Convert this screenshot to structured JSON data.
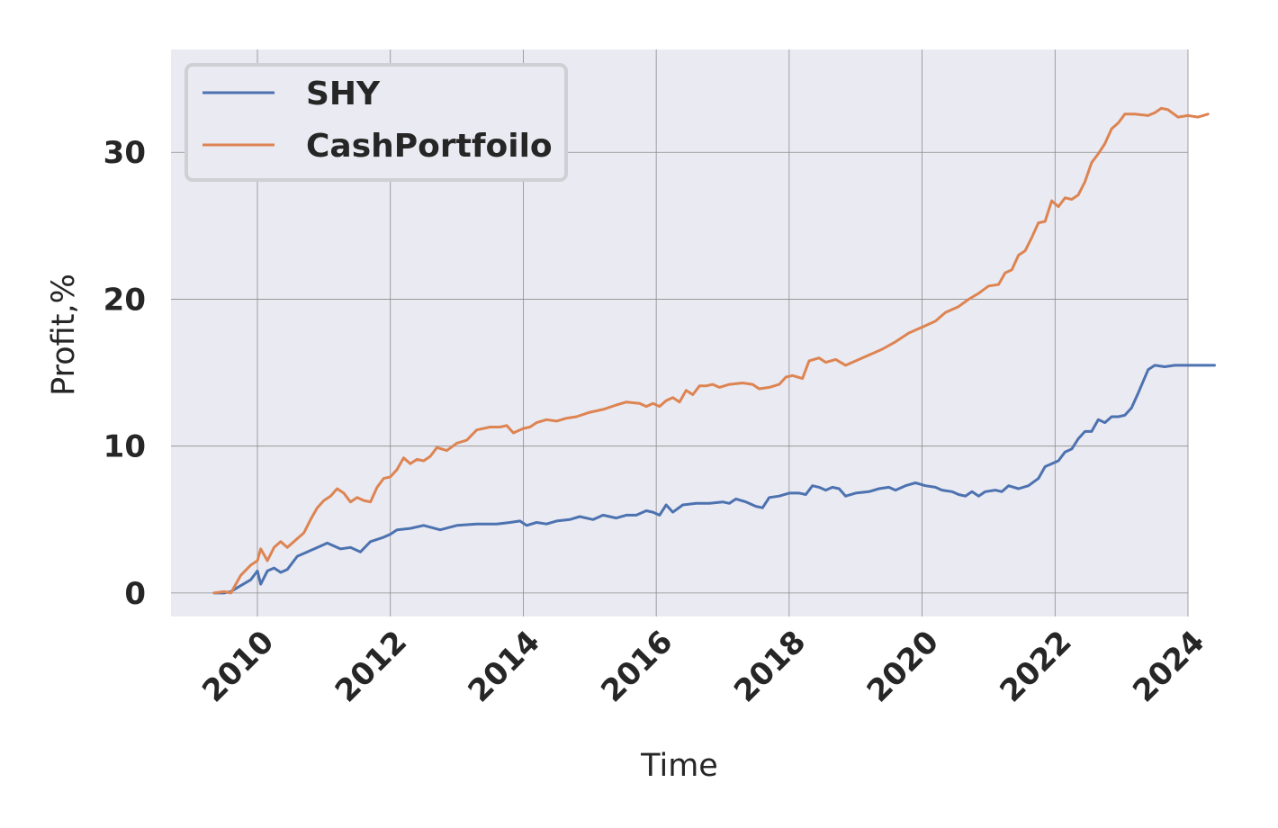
{
  "chart_data": {
    "type": "line",
    "title": "",
    "xlabel": "Time",
    "ylabel": "Profit,%",
    "xlim": [
      2008.7,
      2024.0
    ],
    "ylim": [
      -1.6,
      37.0
    ],
    "x_ticks": [
      2010,
      2012,
      2014,
      2016,
      2018,
      2020,
      2022,
      2024
    ],
    "x_tick_labels": [
      "2010",
      "2012",
      "2014",
      "2016",
      "2018",
      "2020",
      "2022",
      "2024"
    ],
    "y_ticks": [
      0,
      10,
      20,
      30
    ],
    "y_tick_labels": [
      "0",
      "10",
      "20",
      "30"
    ],
    "grid": true,
    "legend_position": "top-left",
    "background": "#eaeaf2",
    "series": [
      {
        "name": "SHY",
        "color": "#4c72b0",
        "points": [
          [
            2009.35,
            0.0
          ],
          [
            2009.5,
            0.0
          ],
          [
            2009.6,
            0.1
          ],
          [
            2009.75,
            0.5
          ],
          [
            2009.9,
            0.9
          ],
          [
            2010.0,
            1.5
          ],
          [
            2010.05,
            0.6
          ],
          [
            2010.15,
            1.5
          ],
          [
            2010.25,
            1.7
          ],
          [
            2010.35,
            1.4
          ],
          [
            2010.45,
            1.6
          ],
          [
            2010.6,
            2.5
          ],
          [
            2010.8,
            2.9
          ],
          [
            2010.95,
            3.2
          ],
          [
            2011.05,
            3.4
          ],
          [
            2011.25,
            3.0
          ],
          [
            2011.4,
            3.1
          ],
          [
            2011.55,
            2.8
          ],
          [
            2011.7,
            3.5
          ],
          [
            2011.9,
            3.8
          ],
          [
            2012.0,
            4.0
          ],
          [
            2012.1,
            4.3
          ],
          [
            2012.3,
            4.4
          ],
          [
            2012.5,
            4.6
          ],
          [
            2012.75,
            4.3
          ],
          [
            2013.0,
            4.6
          ],
          [
            2013.3,
            4.7
          ],
          [
            2013.6,
            4.7
          ],
          [
            2013.8,
            4.8
          ],
          [
            2013.95,
            4.9
          ],
          [
            2014.05,
            4.6
          ],
          [
            2014.2,
            4.8
          ],
          [
            2014.35,
            4.7
          ],
          [
            2014.5,
            4.9
          ],
          [
            2014.7,
            5.0
          ],
          [
            2014.85,
            5.2
          ],
          [
            2015.05,
            5.0
          ],
          [
            2015.2,
            5.3
          ],
          [
            2015.4,
            5.1
          ],
          [
            2015.55,
            5.3
          ],
          [
            2015.7,
            5.3
          ],
          [
            2015.85,
            5.6
          ],
          [
            2015.95,
            5.5
          ],
          [
            2016.05,
            5.3
          ],
          [
            2016.15,
            6.0
          ],
          [
            2016.25,
            5.5
          ],
          [
            2016.4,
            6.0
          ],
          [
            2016.6,
            6.1
          ],
          [
            2016.8,
            6.1
          ],
          [
            2017.0,
            6.2
          ],
          [
            2017.1,
            6.1
          ],
          [
            2017.2,
            6.4
          ],
          [
            2017.35,
            6.2
          ],
          [
            2017.5,
            5.9
          ],
          [
            2017.6,
            5.8
          ],
          [
            2017.7,
            6.5
          ],
          [
            2017.85,
            6.6
          ],
          [
            2018.0,
            6.8
          ],
          [
            2018.15,
            6.8
          ],
          [
            2018.25,
            6.7
          ],
          [
            2018.35,
            7.3
          ],
          [
            2018.45,
            7.2
          ],
          [
            2018.55,
            7.0
          ],
          [
            2018.65,
            7.2
          ],
          [
            2018.75,
            7.1
          ],
          [
            2018.85,
            6.6
          ],
          [
            2019.0,
            6.8
          ],
          [
            2019.2,
            6.9
          ],
          [
            2019.35,
            7.1
          ],
          [
            2019.5,
            7.2
          ],
          [
            2019.6,
            7.0
          ],
          [
            2019.75,
            7.3
          ],
          [
            2019.9,
            7.5
          ],
          [
            2020.05,
            7.3
          ],
          [
            2020.2,
            7.2
          ],
          [
            2020.3,
            7.0
          ],
          [
            2020.45,
            6.9
          ],
          [
            2020.55,
            6.7
          ],
          [
            2020.65,
            6.6
          ],
          [
            2020.75,
            6.9
          ],
          [
            2020.85,
            6.6
          ],
          [
            2020.95,
            6.9
          ],
          [
            2021.1,
            7.0
          ],
          [
            2021.2,
            6.9
          ],
          [
            2021.3,
            7.3
          ],
          [
            2021.45,
            7.1
          ],
          [
            2021.6,
            7.3
          ],
          [
            2021.75,
            7.8
          ],
          [
            2021.85,
            8.6
          ],
          [
            2021.95,
            8.8
          ],
          [
            2022.05,
            9.0
          ],
          [
            2022.15,
            9.6
          ],
          [
            2022.25,
            9.8
          ],
          [
            2022.35,
            10.5
          ],
          [
            2022.45,
            11.0
          ],
          [
            2022.55,
            11.0
          ],
          [
            2022.65,
            11.8
          ],
          [
            2022.75,
            11.6
          ],
          [
            2022.85,
            12.0
          ],
          [
            2022.95,
            12.0
          ],
          [
            2023.05,
            12.1
          ],
          [
            2023.15,
            12.6
          ],
          [
            2023.25,
            13.6
          ],
          [
            2023.4,
            15.2
          ],
          [
            2023.5,
            15.5
          ],
          [
            2023.65,
            15.4
          ],
          [
            2023.8,
            15.5
          ],
          [
            2024.0,
            15.5
          ],
          [
            2024.2,
            15.5
          ],
          [
            2024.4,
            15.5
          ]
        ]
      },
      {
        "name": "CashPortfoilo",
        "color": "#dd8452",
        "points": [
          [
            2009.35,
            0.0
          ],
          [
            2009.5,
            0.1
          ],
          [
            2009.6,
            0.0
          ],
          [
            2009.75,
            1.2
          ],
          [
            2009.9,
            1.9
          ],
          [
            2010.0,
            2.2
          ],
          [
            2010.05,
            3.0
          ],
          [
            2010.15,
            2.2
          ],
          [
            2010.25,
            3.1
          ],
          [
            2010.35,
            3.5
          ],
          [
            2010.45,
            3.1
          ],
          [
            2010.6,
            3.7
          ],
          [
            2010.7,
            4.1
          ],
          [
            2010.8,
            5.0
          ],
          [
            2010.9,
            5.8
          ],
          [
            2011.0,
            6.3
          ],
          [
            2011.1,
            6.6
          ],
          [
            2011.2,
            7.1
          ],
          [
            2011.3,
            6.8
          ],
          [
            2011.4,
            6.2
          ],
          [
            2011.5,
            6.5
          ],
          [
            2011.6,
            6.3
          ],
          [
            2011.7,
            6.2
          ],
          [
            2011.8,
            7.2
          ],
          [
            2011.9,
            7.8
          ],
          [
            2012.0,
            7.9
          ],
          [
            2012.1,
            8.4
          ],
          [
            2012.2,
            9.2
          ],
          [
            2012.3,
            8.8
          ],
          [
            2012.4,
            9.1
          ],
          [
            2012.5,
            9.0
          ],
          [
            2012.6,
            9.3
          ],
          [
            2012.7,
            9.9
          ],
          [
            2012.85,
            9.7
          ],
          [
            2013.0,
            10.2
          ],
          [
            2013.15,
            10.4
          ],
          [
            2013.3,
            11.1
          ],
          [
            2013.5,
            11.3
          ],
          [
            2013.65,
            11.3
          ],
          [
            2013.75,
            11.4
          ],
          [
            2013.85,
            10.9
          ],
          [
            2014.0,
            11.2
          ],
          [
            2014.1,
            11.3
          ],
          [
            2014.2,
            11.6
          ],
          [
            2014.35,
            11.8
          ],
          [
            2014.5,
            11.7
          ],
          [
            2014.65,
            11.9
          ],
          [
            2014.8,
            12.0
          ],
          [
            2015.0,
            12.3
          ],
          [
            2015.2,
            12.5
          ],
          [
            2015.4,
            12.8
          ],
          [
            2015.55,
            13.0
          ],
          [
            2015.75,
            12.9
          ],
          [
            2015.85,
            12.7
          ],
          [
            2015.95,
            12.9
          ],
          [
            2016.05,
            12.7
          ],
          [
            2016.15,
            13.1
          ],
          [
            2016.25,
            13.3
          ],
          [
            2016.35,
            13.0
          ],
          [
            2016.45,
            13.8
          ],
          [
            2016.55,
            13.5
          ],
          [
            2016.65,
            14.1
          ],
          [
            2016.75,
            14.1
          ],
          [
            2016.85,
            14.2
          ],
          [
            2016.95,
            14.0
          ],
          [
            2017.1,
            14.2
          ],
          [
            2017.3,
            14.3
          ],
          [
            2017.45,
            14.2
          ],
          [
            2017.55,
            13.9
          ],
          [
            2017.7,
            14.0
          ],
          [
            2017.85,
            14.2
          ],
          [
            2017.95,
            14.7
          ],
          [
            2018.05,
            14.8
          ],
          [
            2018.2,
            14.6
          ],
          [
            2018.3,
            15.8
          ],
          [
            2018.45,
            16.0
          ],
          [
            2018.55,
            15.7
          ],
          [
            2018.7,
            15.9
          ],
          [
            2018.85,
            15.5
          ],
          [
            2019.0,
            15.8
          ],
          [
            2019.2,
            16.2
          ],
          [
            2019.4,
            16.6
          ],
          [
            2019.6,
            17.1
          ],
          [
            2019.8,
            17.7
          ],
          [
            2020.0,
            18.1
          ],
          [
            2020.2,
            18.5
          ],
          [
            2020.35,
            19.1
          ],
          [
            2020.55,
            19.5
          ],
          [
            2020.7,
            20.0
          ],
          [
            2020.85,
            20.4
          ],
          [
            2021.0,
            20.9
          ],
          [
            2021.15,
            21.0
          ],
          [
            2021.25,
            21.8
          ],
          [
            2021.35,
            22.0
          ],
          [
            2021.45,
            23.0
          ],
          [
            2021.55,
            23.3
          ],
          [
            2021.65,
            24.2
          ],
          [
            2021.75,
            25.2
          ],
          [
            2021.85,
            25.3
          ],
          [
            2021.95,
            26.7
          ],
          [
            2022.05,
            26.3
          ],
          [
            2022.15,
            26.9
          ],
          [
            2022.25,
            26.8
          ],
          [
            2022.35,
            27.1
          ],
          [
            2022.45,
            28.0
          ],
          [
            2022.55,
            29.3
          ],
          [
            2022.65,
            29.9
          ],
          [
            2022.75,
            30.6
          ],
          [
            2022.85,
            31.6
          ],
          [
            2022.95,
            32.0
          ],
          [
            2023.05,
            32.6
          ],
          [
            2023.2,
            32.6
          ],
          [
            2023.4,
            32.5
          ],
          [
            2023.5,
            32.7
          ],
          [
            2023.6,
            33.0
          ],
          [
            2023.7,
            32.9
          ],
          [
            2023.85,
            32.4
          ],
          [
            2024.0,
            32.5
          ],
          [
            2024.15,
            32.4
          ],
          [
            2024.3,
            32.6
          ]
        ]
      }
    ]
  }
}
